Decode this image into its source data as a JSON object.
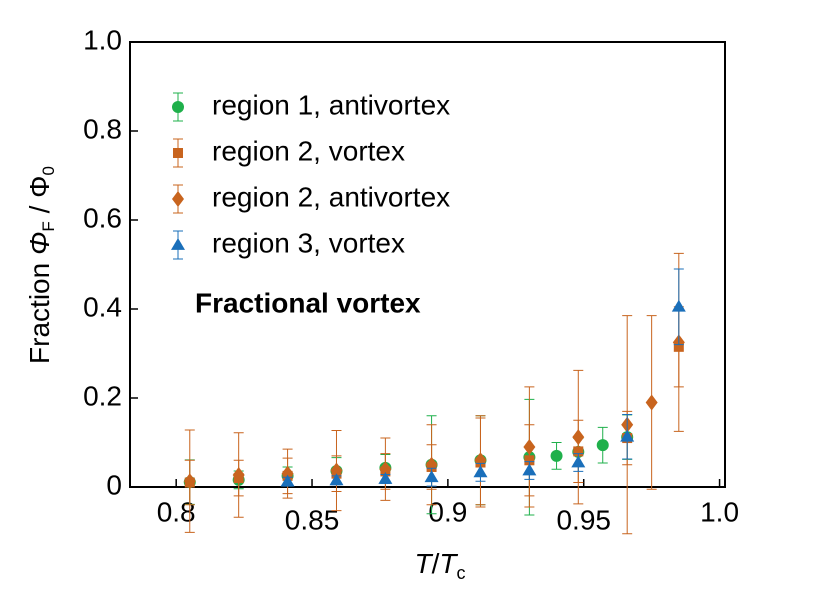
{
  "chart_data": {
    "type": "scatter",
    "xlabel": {
      "numerator": "T",
      "divider": "/",
      "denominator": "T",
      "denominator_sub": "c"
    },
    "ylabel": {
      "prefix": "Fraction",
      "symbol": "Φ",
      "symbol_sub": "F",
      "divider": "/",
      "unit": "Φ",
      "unit_sub": "0"
    },
    "annotation": {
      "text": "Fractional vortex",
      "color": "#ff0000"
    },
    "xlim": [
      0.783,
      1.002
    ],
    "xticks": [
      0.8,
      0.85,
      0.9,
      0.95,
      {
        "value": 1,
        "label": "1.0"
      }
    ],
    "ylim": [
      0,
      1
    ],
    "yticks": [
      0,
      0.2,
      0.4,
      0.6,
      0.8,
      {
        "value": 1,
        "label": "1.0"
      }
    ],
    "legend": "top-left",
    "series": [
      {
        "name": "region 1, antivortex",
        "color": "#1fb04b",
        "marker": "circle",
        "x": [
          0.805,
          0.823,
          0.841,
          0.859,
          0.877,
          0.894,
          0.912,
          0.93,
          0.94,
          0.948,
          0.957,
          0.966
        ],
        "values": [
          0.011,
          0.016,
          0.025,
          0.036,
          0.043,
          0.05,
          0.06,
          0.067,
          0.07,
          0.079,
          0.094,
          0.112
        ],
        "errors": [
          0.05,
          0.02,
          0.02,
          0.03,
          0.03,
          0.11,
          0.1,
          0.13,
          0.03,
          0.03,
          0.04,
          0.05
        ]
      },
      {
        "name": "region 2, vortex",
        "color": "#c8641e",
        "marker": "square",
        "x": [
          0.805,
          0.823,
          0.841,
          0.859,
          0.877,
          0.894,
          0.912,
          0.93,
          0.948,
          0.966,
          0.985
        ],
        "values": [
          0.01,
          0.02,
          0.025,
          0.03,
          0.035,
          0.045,
          0.055,
          0.06,
          0.08,
          0.11,
          0.315
        ],
        "errors": [
          0.05,
          0.04,
          0.04,
          0.04,
          0.04,
          0.05,
          0.1,
          0.08,
          0.07,
          0.06,
          0.09
        ]
      },
      {
        "name": "region 2, antivortex",
        "color": "#c8641e",
        "marker": "diamond",
        "x": [
          0.805,
          0.823,
          0.841,
          0.859,
          0.877,
          0.894,
          0.912,
          0.93,
          0.948,
          0.966,
          0.975,
          0.985
        ],
        "values": [
          0.013,
          0.027,
          0.03,
          0.037,
          0.04,
          0.05,
          0.06,
          0.09,
          0.112,
          0.14,
          0.19,
          0.325
        ],
        "errors": [
          0.115,
          0.095,
          0.055,
          0.09,
          0.07,
          0.09,
          0.1,
          0.135,
          0.15,
          0.245,
          0.195,
          0.2
        ]
      },
      {
        "name": "region 3, vortex",
        "color": "#1a6fba",
        "marker": "triangle",
        "x": [
          0.841,
          0.859,
          0.877,
          0.894,
          0.912,
          0.93,
          0.948,
          0.966,
          0.985
        ],
        "values": [
          0.012,
          0.015,
          0.018,
          0.022,
          0.033,
          0.037,
          0.055,
          0.113,
          0.405
        ],
        "errors": [
          0.01,
          0.01,
          0.01,
          0.02,
          0.02,
          0.02,
          0.02,
          0.05,
          0.085
        ]
      }
    ]
  }
}
